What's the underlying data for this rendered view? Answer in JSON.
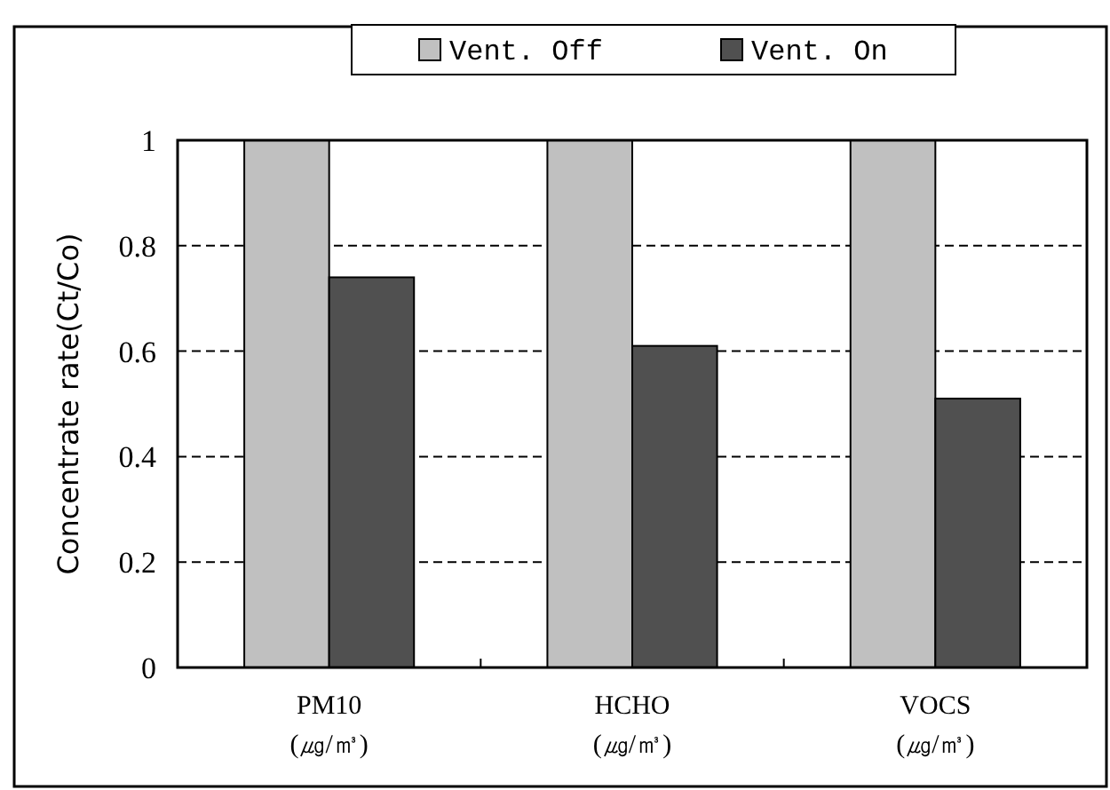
{
  "chart_data": {
    "type": "bar",
    "ylabel": "Concentrate rate(Ct/Co)",
    "categories": [
      "PM10\n(㎍/㎥)",
      "HCHO\n(㎍/㎥)",
      "VOCS\n(㎍/㎥)"
    ],
    "series": [
      {
        "name": "Vent. Off",
        "color": "#c0c0c0",
        "values": [
          1,
          1,
          1
        ]
      },
      {
        "name": "Vent. On",
        "color": "#505050",
        "values": [
          0.74,
          0.61,
          0.51
        ]
      }
    ],
    "ylim": [
      0,
      1
    ],
    "yticks": [
      0,
      0.2,
      0.4,
      0.6,
      0.8,
      1
    ],
    "grid": "y",
    "legend": "top"
  }
}
